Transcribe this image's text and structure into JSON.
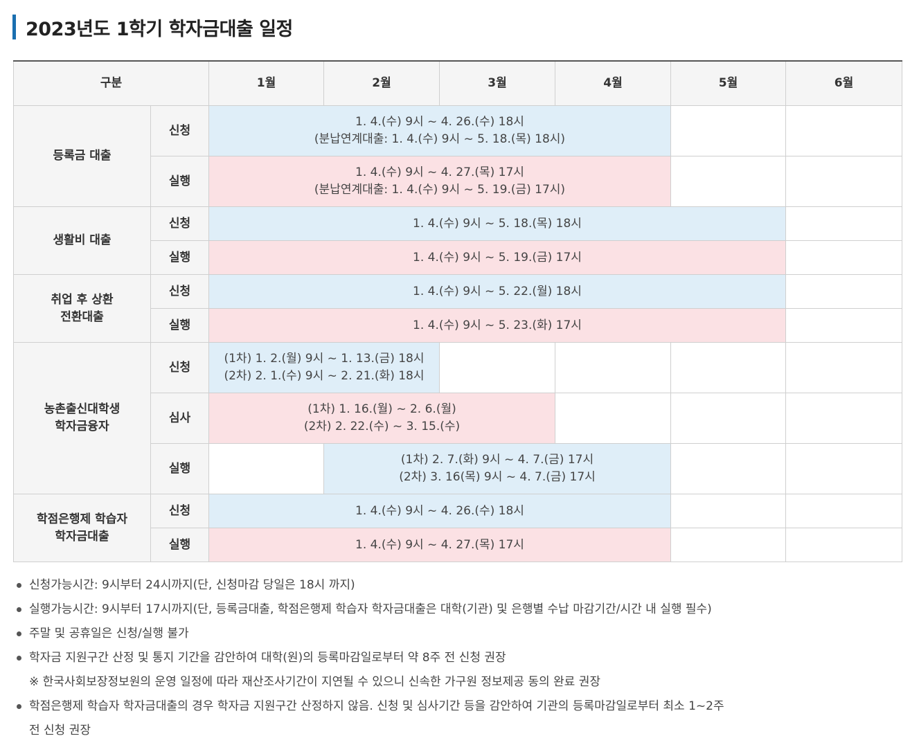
{
  "title": "2023년도 1학기 학자금대출 일정",
  "header": {
    "category": "구분",
    "months": [
      "1월",
      "2월",
      "3월",
      "4월",
      "5월",
      "6월"
    ]
  },
  "rows": {
    "tuition": {
      "category": "등록금 대출",
      "apply_label": "신청",
      "apply_line1": "1. 4.(수) 9시 ~ 4. 26.(수) 18시",
      "apply_line2": "(분납연계대출: 1. 4.(수) 9시 ~ 5. 18.(목) 18시)",
      "exec_label": "실행",
      "exec_line1": "1. 4.(수) 9시 ~ 4. 27.(목) 17시",
      "exec_line2": "(분납연계대출: 1. 4.(수) 9시 ~ 5. 19.(금) 17시)"
    },
    "living": {
      "category": "생활비 대출",
      "apply_label": "신청",
      "apply": "1. 4.(수) 9시 ~ 5. 18.(목) 18시",
      "exec_label": "실행",
      "exec": "1. 4.(수) 9시 ~ 5. 19.(금) 17시"
    },
    "icl": {
      "category_line1": "취업 후 상환",
      "category_line2": "전환대출",
      "apply_label": "신청",
      "apply": "1. 4.(수) 9시 ~ 5. 22.(월) 18시",
      "exec_label": "실행",
      "exec": "1. 4.(수) 9시 ~ 5. 23.(화) 17시"
    },
    "rural": {
      "category_line1": "농촌출신대학생",
      "category_line2": "학자금융자",
      "apply_label": "신청",
      "apply_line1": "(1차) 1. 2.(월) 9시 ~ 1. 13.(금) 18시",
      "apply_line2": "(2차) 2. 1.(수) 9시 ~ 2. 21.(화) 18시",
      "review_label": "심사",
      "review_line1": "(1차) 1. 16.(월) ~ 2. 6.(월)",
      "review_line2": "(2차) 2. 22.(수) ~ 3. 15.(수)",
      "exec_label": "실행",
      "exec_line1": "(1차) 2. 7.(화) 9시 ~ 4. 7.(금) 17시",
      "exec_line2": "(2차) 3. 16(목) 9시 ~ 4. 7.(금) 17시"
    },
    "credit_bank": {
      "category_line1": "학점은행제 학습자",
      "category_line2": "학자금대출",
      "apply_label": "신청",
      "apply": "1. 4.(수) 9시 ~ 4. 26.(수) 18시",
      "exec_label": "실행",
      "exec": "1. 4.(수) 9시 ~ 4. 27.(목) 17시"
    }
  },
  "notes": {
    "n1": "신청가능시간: 9시부터 24시까지(단, 신청마감 당일은 18시 까지)",
    "n2": "실행가능시간: 9시부터 17시까지(단, 등록금대출, 학점은행제 학습자 학자금대출은 대학(기관) 및 은행별 수납 마감기간/시간 내 실행 필수)",
    "n3": "주말 및 공휴일은 신청/실행 불가",
    "n4": "학자금 지원구간 산정 및 통지 기간을 감안하여 대학(원)의 등록마감일로부터 약 8주 전 신청 권장",
    "n4_ref": "※ 한국사회보장정보원의 운영 일정에 따라 재산조사기간이 지연될 수 있으니 신속한 가구원 정보제공 동의 완료 권장",
    "n5_line1": "학점은행제 학습자 학자금대출의 경우 학자금 지원구간 산정하지 않음. 신청 및 심사기간 등을 감안하여 기관의 등록마감일로부터 최소 1~2주",
    "n5_line2": "전 신청 권장"
  }
}
